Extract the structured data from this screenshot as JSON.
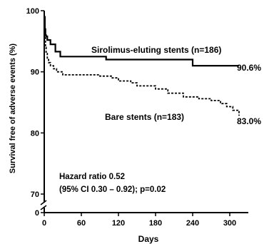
{
  "chart_data": {
    "type": "line",
    "xlabel": "Days",
    "ylabel": "Survival free of adverse events (%)",
    "xlim": [
      0,
      330
    ],
    "ylim": [
      70,
      100
    ],
    "y_axis_break": true,
    "y_break_value": 0,
    "xticks": [
      0,
      60,
      120,
      180,
      240,
      300
    ],
    "xtick_labels": [
      "0",
      "60",
      "120",
      "180",
      "240",
      "300"
    ],
    "yticks": [
      70,
      80,
      90,
      100
    ],
    "ytick_labels": [
      "70",
      "80",
      "90",
      "100"
    ],
    "y_zero_label": "0",
    "series": [
      {
        "name": "Sirolimus-eluting stents (n=186)",
        "style": "solid",
        "color": "#000000",
        "end_label": "90.6%",
        "x": [
          0,
          1,
          2,
          3,
          5,
          9,
          10,
          17,
          18,
          22,
          26,
          100,
          240,
          315
        ],
        "y": [
          99,
          97,
          96,
          95.8,
          95.2,
          95.2,
          94.5,
          94.5,
          93.3,
          93.3,
          92.5,
          92.0,
          91.0,
          91.0
        ]
      },
      {
        "name": "Bare stents (n=183)",
        "style": "dashed",
        "color": "#000000",
        "end_label": "83.0%",
        "x": [
          0,
          1,
          2,
          3,
          5,
          7,
          10,
          15,
          20,
          30,
          60,
          90,
          110,
          120,
          140,
          150,
          180,
          200,
          225,
          250,
          270,
          285,
          295,
          305,
          315
        ],
        "y": [
          99,
          96,
          94,
          93,
          92,
          91.5,
          91,
          90.5,
          90,
          89.5,
          89.5,
          89.3,
          89.0,
          88.5,
          88.2,
          87.7,
          87.2,
          86.5,
          85.9,
          85.6,
          85.3,
          84.8,
          84.3,
          83.7,
          82.8
        ]
      }
    ],
    "annotations": [
      "Hazard ratio 0.52",
      "(95% CI 0.30 – 0.92); p=0.02"
    ]
  }
}
